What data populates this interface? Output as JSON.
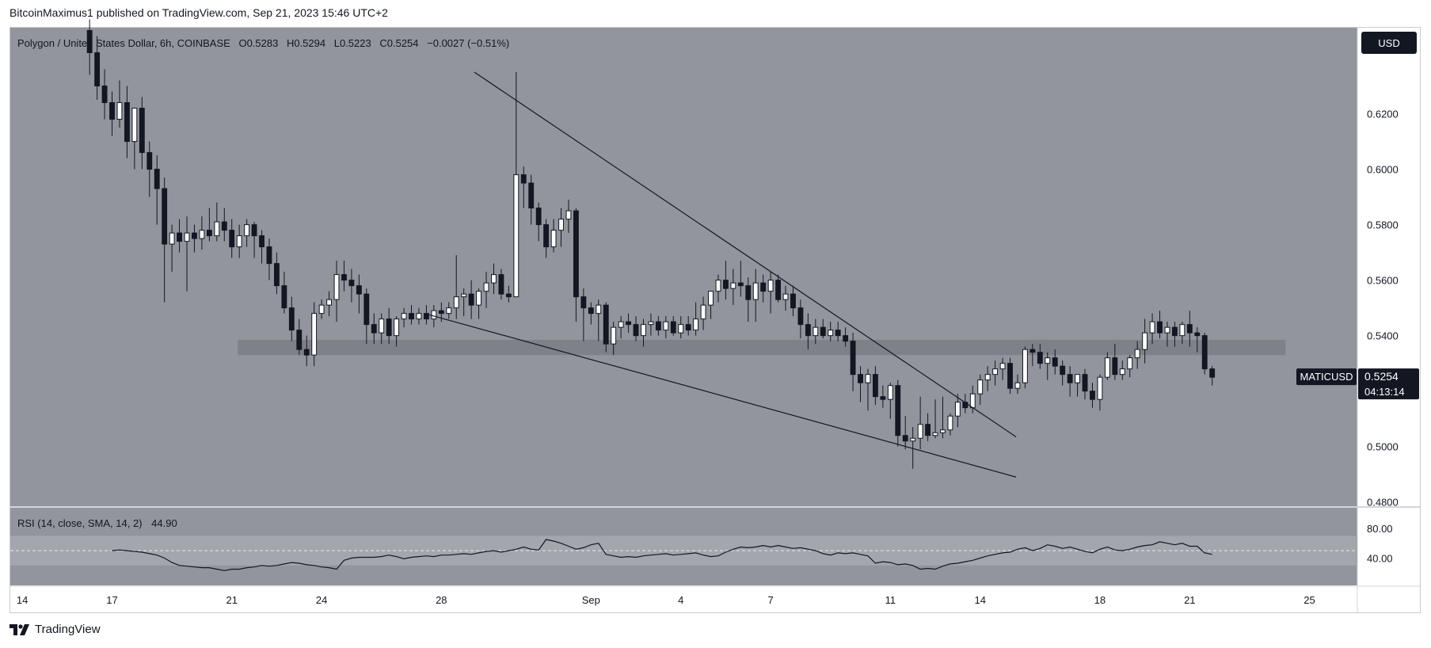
{
  "publisher": "BitcoinMaximus1 published on TradingView.com, Sep 21, 2023 15:46 UTC+2",
  "footer": {
    "brand": "TradingView",
    "logo_icon": "tradingview-logo-icon"
  },
  "currency_button": "USD",
  "colors": {
    "plot_bg": "#92959c",
    "up_body": "#ffffff",
    "down_body": "#131722",
    "wick": "#131722",
    "support_zone": "#7e8187",
    "rsi_band": "#a3a6ac",
    "text_dark": "#131722",
    "label_bg": "#131722",
    "label_text": "#ffffff"
  },
  "legend": {
    "symbol": "Polygon / United States Dollar, 6h, COINBASE",
    "o_label": "O",
    "o_value": "0.5283",
    "h_label": "H",
    "h_value": "0.5294",
    "l_label": "L",
    "l_value": "0.5223",
    "c_label": "C",
    "c_value": "0.5254",
    "change": "−0.0027 (−0.51%)"
  },
  "price_label": {
    "ticker": "MATICUSD",
    "price": "0.5254",
    "countdown": "04:13:14"
  },
  "rsi": {
    "label": "RSI (14, close, SMA, 14, 2)",
    "value": "44.90"
  },
  "chart_data": [
    {
      "type": "candlestick",
      "title": "Polygon / United States Dollar, 6h, COINBASE",
      "y_ticks": [
        "0.6200",
        "0.6000",
        "0.5800",
        "0.5600",
        "0.5400",
        "0.5000",
        "0.4800"
      ],
      "y_tick_values": [
        0.62,
        0.6,
        0.58,
        0.56,
        0.54,
        0.5,
        0.48
      ],
      "ylim": [
        0.4785,
        0.651
      ],
      "x_ticks": [
        "14",
        "17",
        "21",
        "24",
        "28",
        "Sep",
        "4",
        "7",
        "11",
        "14",
        "18",
        "21",
        "25"
      ],
      "x_tick_days": [
        -18,
        -15,
        -11,
        -8,
        -4,
        1,
        4,
        7,
        11,
        14,
        18,
        21,
        25
      ],
      "x_range_days": [
        -18.4,
        26.6
      ],
      "grid": false,
      "support_zone": [
        0.533,
        0.5385
      ],
      "wedge_upper": [
        [
          -2.9,
          0.635
        ],
        [
          15.2,
          0.5035
        ]
      ],
      "wedge_lower": [
        [
          -4.4,
          0.5475
        ],
        [
          15.2,
          0.489
        ]
      ],
      "candles": [
        [
          0.65,
          0.654,
          0.634,
          0.642
        ],
        [
          0.642,
          0.648,
          0.625,
          0.63
        ],
        [
          0.63,
          0.636,
          0.618,
          0.624
        ],
        [
          0.624,
          0.628,
          0.612,
          0.618
        ],
        [
          0.618,
          0.632,
          0.615,
          0.624
        ],
        [
          0.624,
          0.63,
          0.604,
          0.61
        ],
        [
          0.61,
          0.622,
          0.6,
          0.622
        ],
        [
          0.622,
          0.626,
          0.6,
          0.606
        ],
        [
          0.606,
          0.61,
          0.59,
          0.6
        ],
        [
          0.6,
          0.605,
          0.58,
          0.593
        ],
        [
          0.593,
          0.597,
          0.552,
          0.573
        ],
        [
          0.573,
          0.58,
          0.563,
          0.577
        ],
        [
          0.577,
          0.582,
          0.57,
          0.574
        ],
        [
          0.574,
          0.583,
          0.556,
          0.577
        ],
        [
          0.577,
          0.58,
          0.57,
          0.575
        ],
        [
          0.575,
          0.583,
          0.571,
          0.578
        ],
        [
          0.578,
          0.586,
          0.574,
          0.576
        ],
        [
          0.576,
          0.588,
          0.574,
          0.581
        ],
        [
          0.581,
          0.586,
          0.574,
          0.578
        ],
        [
          0.578,
          0.582,
          0.568,
          0.572
        ],
        [
          0.572,
          0.58,
          0.568,
          0.576
        ],
        [
          0.576,
          0.582,
          0.572,
          0.58
        ],
        [
          0.58,
          0.581,
          0.568,
          0.576
        ],
        [
          0.576,
          0.578,
          0.566,
          0.572
        ],
        [
          0.572,
          0.575,
          0.56,
          0.566
        ],
        [
          0.566,
          0.57,
          0.555,
          0.558
        ],
        [
          0.558,
          0.563,
          0.548,
          0.55
        ],
        [
          0.55,
          0.554,
          0.538,
          0.542
        ],
        [
          0.542,
          0.546,
          0.533,
          0.535
        ],
        [
          0.535,
          0.54,
          0.529,
          0.533
        ],
        [
          0.533,
          0.552,
          0.529,
          0.548
        ],
        [
          0.548,
          0.553,
          0.546,
          0.551
        ],
        [
          0.551,
          0.556,
          0.547,
          0.553
        ],
        [
          0.553,
          0.567,
          0.545,
          0.562
        ],
        [
          0.562,
          0.567,
          0.556,
          0.56
        ],
        [
          0.56,
          0.564,
          0.552,
          0.558
        ],
        [
          0.558,
          0.562,
          0.548,
          0.555
        ],
        [
          0.555,
          0.557,
          0.537,
          0.544
        ],
        [
          0.544,
          0.548,
          0.537,
          0.541
        ],
        [
          0.541,
          0.548,
          0.537,
          0.546
        ],
        [
          0.546,
          0.55,
          0.537,
          0.54
        ],
        [
          0.54,
          0.547,
          0.536,
          0.546
        ],
        [
          0.546,
          0.55,
          0.543,
          0.548
        ],
        [
          0.548,
          0.551,
          0.544,
          0.546
        ],
        [
          0.546,
          0.55,
          0.544,
          0.548
        ],
        [
          0.548,
          0.551,
          0.544,
          0.546
        ],
        [
          0.546,
          0.551,
          0.543,
          0.549
        ],
        [
          0.549,
          0.552,
          0.545,
          0.548
        ],
        [
          0.548,
          0.552,
          0.546,
          0.55
        ],
        [
          0.55,
          0.569,
          0.546,
          0.554
        ],
        [
          0.554,
          0.557,
          0.547,
          0.555
        ],
        [
          0.555,
          0.56,
          0.546,
          0.551
        ],
        [
          0.551,
          0.557,
          0.546,
          0.556
        ],
        [
          0.556,
          0.563,
          0.55,
          0.559
        ],
        [
          0.559,
          0.566,
          0.555,
          0.562
        ],
        [
          0.562,
          0.564,
          0.553,
          0.555
        ],
        [
          0.555,
          0.558,
          0.552,
          0.554
        ],
        [
          0.554,
          0.635,
          0.554,
          0.598
        ],
        [
          0.598,
          0.601,
          0.586,
          0.595
        ],
        [
          0.595,
          0.598,
          0.58,
          0.586
        ],
        [
          0.586,
          0.588,
          0.574,
          0.58
        ],
        [
          0.58,
          0.582,
          0.568,
          0.572
        ],
        [
          0.572,
          0.582,
          0.57,
          0.578
        ],
        [
          0.578,
          0.586,
          0.572,
          0.582
        ],
        [
          0.582,
          0.589,
          0.577,
          0.585
        ],
        [
          0.585,
          0.586,
          0.545,
          0.554
        ],
        [
          0.554,
          0.557,
          0.538,
          0.55
        ],
        [
          0.55,
          0.552,
          0.544,
          0.548
        ],
        [
          0.548,
          0.553,
          0.538,
          0.551
        ],
        [
          0.551,
          0.552,
          0.534,
          0.537
        ],
        [
          0.537,
          0.545,
          0.533,
          0.543
        ],
        [
          0.543,
          0.547,
          0.539,
          0.545
        ],
        [
          0.545,
          0.548,
          0.541,
          0.544
        ],
        [
          0.544,
          0.547,
          0.538,
          0.54
        ],
        [
          0.54,
          0.546,
          0.536,
          0.544
        ],
        [
          0.544,
          0.548,
          0.54,
          0.545
        ],
        [
          0.545,
          0.547,
          0.54,
          0.542
        ],
        [
          0.542,
          0.547,
          0.539,
          0.545
        ],
        [
          0.545,
          0.547,
          0.54,
          0.541
        ],
        [
          0.541,
          0.547,
          0.539,
          0.544
        ],
        [
          0.544,
          0.547,
          0.54,
          0.542
        ],
        [
          0.542,
          0.552,
          0.54,
          0.546
        ],
        [
          0.546,
          0.554,
          0.542,
          0.551
        ],
        [
          0.551,
          0.556,
          0.546,
          0.556
        ],
        [
          0.556,
          0.562,
          0.552,
          0.56
        ],
        [
          0.56,
          0.567,
          0.553,
          0.557
        ],
        [
          0.557,
          0.564,
          0.551,
          0.559
        ],
        [
          0.559,
          0.567,
          0.554,
          0.558
        ],
        [
          0.558,
          0.561,
          0.545,
          0.553
        ],
        [
          0.553,
          0.564,
          0.545,
          0.559
        ],
        [
          0.559,
          0.562,
          0.552,
          0.556
        ],
        [
          0.556,
          0.563,
          0.548,
          0.56
        ],
        [
          0.56,
          0.562,
          0.552,
          0.553
        ],
        [
          0.553,
          0.558,
          0.549,
          0.555
        ],
        [
          0.555,
          0.558,
          0.547,
          0.55
        ],
        [
          0.55,
          0.553,
          0.539,
          0.544
        ],
        [
          0.544,
          0.548,
          0.535,
          0.54
        ],
        [
          0.54,
          0.546,
          0.537,
          0.543
        ],
        [
          0.543,
          0.546,
          0.539,
          0.54
        ],
        [
          0.54,
          0.545,
          0.538,
          0.542
        ],
        [
          0.542,
          0.545,
          0.538,
          0.54
        ],
        [
          0.54,
          0.543,
          0.536,
          0.538
        ],
        [
          0.538,
          0.541,
          0.52,
          0.526
        ],
        [
          0.526,
          0.529,
          0.516,
          0.523
        ],
        [
          0.523,
          0.528,
          0.513,
          0.526
        ],
        [
          0.526,
          0.529,
          0.515,
          0.518
        ],
        [
          0.518,
          0.522,
          0.514,
          0.517
        ],
        [
          0.517,
          0.523,
          0.51,
          0.522
        ],
        [
          0.522,
          0.524,
          0.5,
          0.504
        ],
        [
          0.504,
          0.511,
          0.499,
          0.502
        ],
        [
          0.502,
          0.507,
          0.492,
          0.503
        ],
        [
          0.503,
          0.518,
          0.499,
          0.508
        ],
        [
          0.508,
          0.512,
          0.502,
          0.504
        ],
        [
          0.504,
          0.517,
          0.503,
          0.505
        ],
        [
          0.505,
          0.518,
          0.503,
          0.506
        ],
        [
          0.506,
          0.512,
          0.504,
          0.511
        ],
        [
          0.511,
          0.519,
          0.507,
          0.516
        ],
        [
          0.516,
          0.519,
          0.512,
          0.514
        ],
        [
          0.514,
          0.522,
          0.512,
          0.519
        ],
        [
          0.519,
          0.526,
          0.515,
          0.524
        ],
        [
          0.524,
          0.529,
          0.52,
          0.526
        ],
        [
          0.526,
          0.531,
          0.522,
          0.528
        ],
        [
          0.528,
          0.532,
          0.524,
          0.53
        ],
        [
          0.53,
          0.532,
          0.519,
          0.521
        ],
        [
          0.521,
          0.526,
          0.519,
          0.523
        ],
        [
          0.523,
          0.536,
          0.521,
          0.535
        ],
        [
          0.535,
          0.537,
          0.529,
          0.534
        ],
        [
          0.534,
          0.537,
          0.528,
          0.53
        ],
        [
          0.53,
          0.534,
          0.524,
          0.532
        ],
        [
          0.532,
          0.535,
          0.526,
          0.529
        ],
        [
          0.529,
          0.531,
          0.522,
          0.526
        ],
        [
          0.526,
          0.529,
          0.518,
          0.523
        ],
        [
          0.523,
          0.526,
          0.518,
          0.526
        ],
        [
          0.526,
          0.528,
          0.517,
          0.52
        ],
        [
          0.52,
          0.523,
          0.514,
          0.517
        ],
        [
          0.517,
          0.526,
          0.513,
          0.525
        ],
        [
          0.525,
          0.534,
          0.524,
          0.532
        ],
        [
          0.532,
          0.537,
          0.524,
          0.526
        ],
        [
          0.526,
          0.531,
          0.524,
          0.528
        ],
        [
          0.528,
          0.533,
          0.525,
          0.532
        ],
        [
          0.532,
          0.538,
          0.528,
          0.535
        ],
        [
          0.535,
          0.546,
          0.53,
          0.541
        ],
        [
          0.541,
          0.548,
          0.537,
          0.545
        ],
        [
          0.545,
          0.549,
          0.539,
          0.541
        ],
        [
          0.541,
          0.545,
          0.536,
          0.543
        ],
        [
          0.543,
          0.545,
          0.536,
          0.54
        ],
        [
          0.54,
          0.545,
          0.537,
          0.544
        ],
        [
          0.544,
          0.549,
          0.536,
          0.541
        ],
        [
          0.541,
          0.543,
          0.534,
          0.54
        ],
        [
          0.54,
          0.541,
          0.526,
          0.528
        ],
        [
          0.528,
          0.529,
          0.522,
          0.525
        ]
      ]
    },
    {
      "type": "line",
      "title": "RSI (14, close, SMA, 14, 2)",
      "y_ticks": [
        "80.00",
        "40.00"
      ],
      "y_tick_values": [
        80,
        40
      ],
      "ylim": [
        3,
        108
      ],
      "band": [
        30,
        70
      ],
      "mid_dashed": 50,
      "series": [
        {
          "values": [
            50,
            51,
            50,
            49,
            48,
            46,
            44,
            40,
            34,
            30,
            29,
            28,
            27,
            27,
            25,
            23,
            25,
            25,
            27,
            28,
            30,
            29,
            30,
            32,
            34,
            33,
            31,
            30,
            28,
            27,
            25,
            37,
            40,
            41,
            41,
            41,
            42,
            44,
            42,
            39,
            41,
            42,
            43,
            42,
            44,
            44,
            45,
            46,
            45,
            47,
            49,
            50,
            48,
            50,
            52,
            55,
            52,
            51,
            65,
            63,
            60,
            56,
            52,
            54,
            58,
            60,
            45,
            43,
            41,
            42,
            41,
            43,
            44,
            45,
            46,
            44,
            45,
            46,
            47,
            44,
            42,
            43,
            48,
            52,
            55,
            54,
            55,
            57,
            55,
            57,
            55,
            53,
            54,
            52,
            50,
            46,
            44,
            47,
            46,
            47,
            45,
            43,
            33,
            35,
            34,
            31,
            32,
            30,
            25,
            26,
            25,
            29,
            32,
            33,
            35,
            37,
            40,
            43,
            45,
            47,
            48,
            52,
            54,
            50,
            53,
            58,
            56,
            53,
            55,
            52,
            49,
            47,
            52,
            55,
            51,
            50,
            52,
            55,
            57,
            58,
            62,
            60,
            58,
            60,
            56,
            56,
            47,
            45
          ]
        }
      ]
    }
  ]
}
